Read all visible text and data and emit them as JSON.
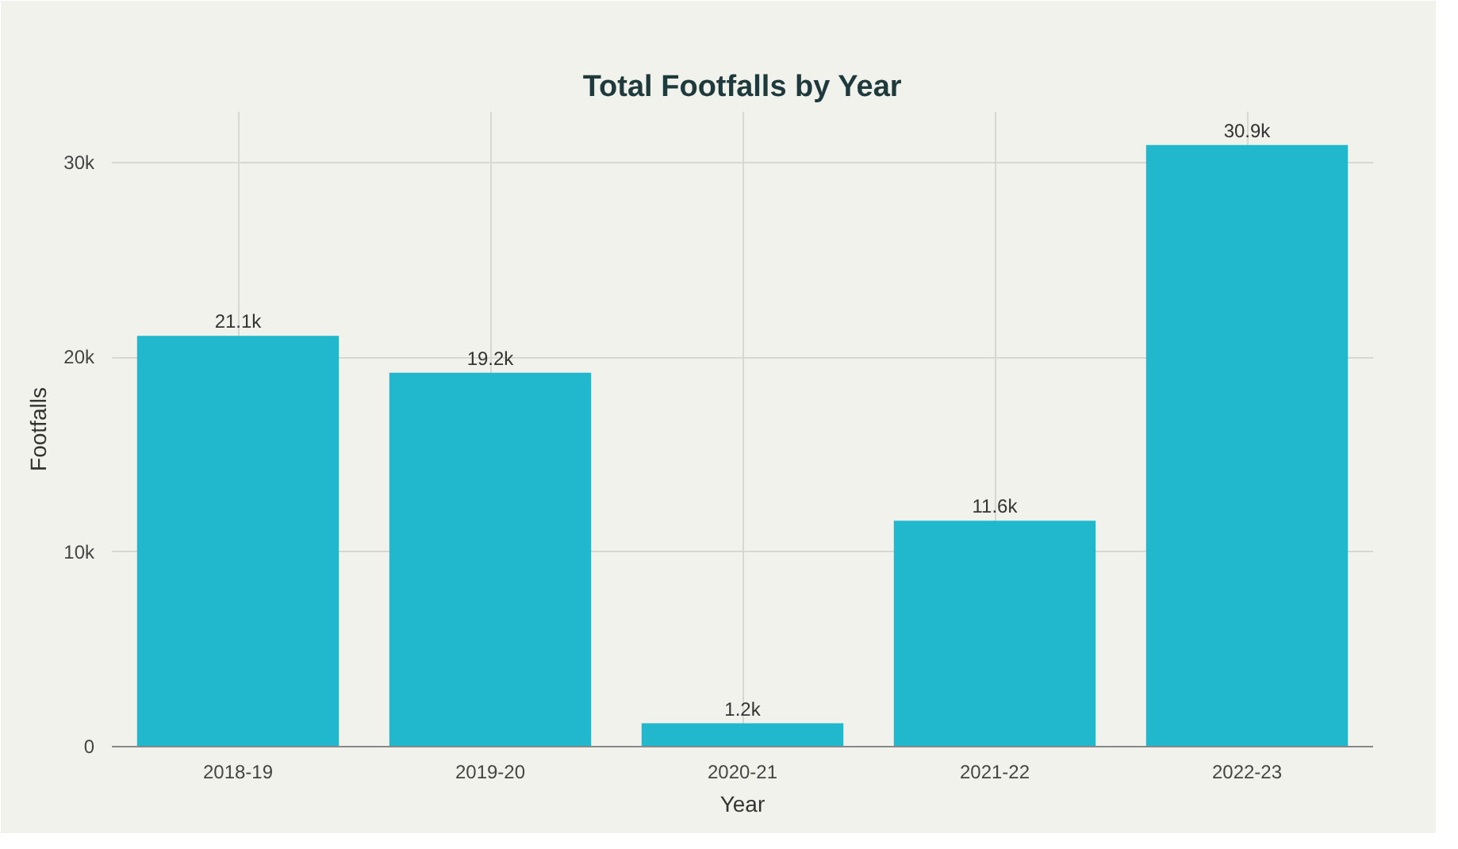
{
  "chart_data": {
    "type": "bar",
    "title": "Total Footfalls by Year",
    "xlabel": "Year",
    "ylabel": "Footfalls",
    "categories": [
      "2018-19",
      "2019-20",
      "2020-21",
      "2021-22",
      "2022-23"
    ],
    "values": [
      21100,
      19200,
      1200,
      11600,
      30900
    ],
    "value_labels": [
      "21.1k",
      "19.2k",
      "1.2k",
      "11.6k",
      "30.9k"
    ],
    "color": "#21b7cc",
    "ylim": [
      0,
      32600
    ],
    "yticks": [
      0,
      {
        "value": 10000,
        "label": "10k"
      },
      {
        "value": 20000,
        "label": "20k"
      },
      {
        "value": 30000,
        "label": "30k"
      }
    ],
    "grid": true
  }
}
